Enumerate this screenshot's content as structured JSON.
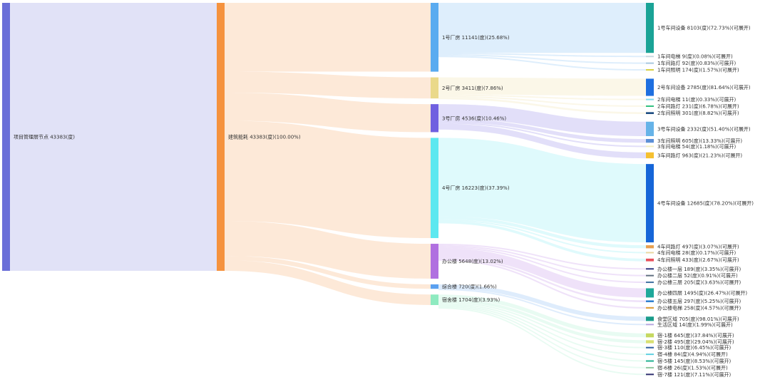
{
  "chart_data": {
    "type": "sankey",
    "unit": "度",
    "columns": [
      [
        {
          "id": "root",
          "label": "项目管理层节点  43383(度)",
          "value": 43383,
          "color": "#6a6fd8"
        }
      ],
      [
        {
          "id": "total",
          "label": "建筑能耗  43383(度)(100.00%)",
          "value": 43383,
          "color": "#f5923e",
          "parent": "root"
        }
      ],
      [
        {
          "id": "b1",
          "label": "1号厂房  11141(度)(25.68%)",
          "value": 11141,
          "color": "#5aabf0",
          "parent": "total"
        },
        {
          "id": "b2",
          "label": "2号厂房  3411(度)(7.86%)",
          "value": 3411,
          "color": "#ead98a",
          "parent": "total"
        },
        {
          "id": "b3",
          "label": "3号厂房  4536(度)(10.46%)",
          "value": 4536,
          "color": "#7060e0",
          "parent": "total"
        },
        {
          "id": "b4",
          "label": "4号厂房  16223(度)(37.39%)",
          "value": 16223,
          "color": "#5de8f0",
          "parent": "total"
        },
        {
          "id": "b5",
          "label": "办公楼  5648(度)(13.02%)",
          "value": 5648,
          "color": "#b070e0",
          "parent": "total"
        },
        {
          "id": "b6",
          "label": "综合楼  720(度)(1.66%)",
          "value": 720,
          "color": "#5aa0f0",
          "parent": "total"
        },
        {
          "id": "b7",
          "label": "宿舍楼  1704(度)(3.93%)",
          "value": 1704,
          "color": "#8eeac0",
          "parent": "total"
        }
      ],
      [
        {
          "label": "1号车间设备  8103(度)(72.73%)(可展开)",
          "value": 8103,
          "color": "#1aa396",
          "parent": "b1"
        },
        {
          "label": "1车间电梯  9(度)(0.08%)(可展开)",
          "value": 9,
          "color": "#c8d8e0",
          "parent": "b1"
        },
        {
          "label": "1车间路灯  92(度)(0.83%)(可展开)",
          "value": 92,
          "color": "#a8c8e0",
          "parent": "b1"
        },
        {
          "label": "1车间照明  174(度)(1.57%)(可展开)",
          "value": 174,
          "color": "#d8d040",
          "parent": "b1"
        },
        {
          "label": "2号车间设备  2785(度)(81.64%)(可展开)",
          "value": 2785,
          "color": "#1e6fe0",
          "parent": "b2"
        },
        {
          "label": "2车间电梯  11(度)(0.33%)(可展开)",
          "value": 11,
          "color": "#80d8f0",
          "parent": "b2"
        },
        {
          "label": "2车间路灯  231(度)(6.78%)(可展开)",
          "value": 231,
          "color": "#30c080",
          "parent": "b2"
        },
        {
          "label": "2车间照明  301(度)(8.82%)(可展开)",
          "value": 301,
          "color": "#1a4a80",
          "parent": "b2"
        },
        {
          "label": "3号车间设备  2332(度)(51.40%)(可展开)",
          "value": 2332,
          "color": "#66b3e8",
          "parent": "b3"
        },
        {
          "label": "3车间照明  605(度)(13.33%)(可展开)",
          "value": 605,
          "color": "#5b8fd6",
          "parent": "b3"
        },
        {
          "label": "3车间电梯  54(度)(1.18%)(可展开)",
          "value": 54,
          "color": "#f0ecc0",
          "parent": "b3"
        },
        {
          "label": "3车间路灯  963(度)(21.23%)(可展开)",
          "value": 963,
          "color": "#f5c030",
          "parent": "b3"
        },
        {
          "label": "4号车间设备  12685(度)(78.20%)(可展开)",
          "value": 12685,
          "color": "#1565d8",
          "parent": "b4"
        },
        {
          "label": "4车间路灯  497(度)(3.07%)(可展开)",
          "value": 497,
          "color": "#e8a050",
          "parent": "b4"
        },
        {
          "label": "4车间电梯  28(度)(0.17%)(可展开)",
          "value": 28,
          "color": "#e8d8a0",
          "parent": "b4"
        },
        {
          "label": "4车间照明  433(度)(2.67%)(可展开)",
          "value": 433,
          "color": "#e8505b",
          "parent": "b4"
        },
        {
          "label": "办公楼一层  189(度)(3.35%)(可展开)",
          "value": 189,
          "color": "#303880",
          "parent": "b5"
        },
        {
          "label": "办公楼二层  52(度)(0.91%)(可展开)",
          "value": 52,
          "color": "#607080",
          "parent": "b5"
        },
        {
          "label": "办公楼三层  205(度)(3.63%)(可展开)",
          "value": 205,
          "color": "#4070a0",
          "parent": "b5"
        },
        {
          "label": "办公楼四层  1495(度)(26.47%)(可展开)",
          "value": 1495,
          "color": "#1fa89a",
          "parent": "b5"
        },
        {
          "label": "办公楼五层  297(度)(5.25%)(可展开)",
          "value": 297,
          "color": "#3080d0",
          "parent": "b5"
        },
        {
          "label": "办公楼电梯  258(度)(4.57%)(可展开)",
          "value": 258,
          "color": "#e0a040",
          "parent": "b5"
        },
        {
          "label": "食堂区域  705(度)(98.01%)(可展开)",
          "value": 705,
          "color": "#1a9c8a",
          "parent": "b6"
        },
        {
          "label": "生活区域  14(度)(1.99%)(可展开)",
          "value": 14,
          "color": "#b8a8e0",
          "parent": "b6"
        },
        {
          "label": "宿-1楼  645(度)(37.84%)(可展开)",
          "value": 645,
          "color": "#c5d860",
          "parent": "b7"
        },
        {
          "label": "宿-2楼  495(度)(29.04%)(可展开)",
          "value": 495,
          "color": "#d8e070",
          "parent": "b7"
        },
        {
          "label": "宿-3楼  110(度)(6.45%)(可展开)",
          "value": 110,
          "color": "#3060a0",
          "parent": "b7"
        },
        {
          "label": "宿-4楼  84(度)(4.94%)(可展开)",
          "value": 84,
          "color": "#60d0e0",
          "parent": "b7"
        },
        {
          "label": "宿-5楼  145(度)(8.53%)(可展开)",
          "value": 145,
          "color": "#20b090",
          "parent": "b7"
        },
        {
          "label": "宿-6楼  26(度)(1.53%)(可展开)",
          "value": 26,
          "color": "#90c8a0",
          "parent": "b7"
        },
        {
          "label": "宿-7楼  121(度)(7.11%)(可展开)",
          "value": 121,
          "color": "#303070",
          "parent": "b7"
        }
      ]
    ]
  }
}
